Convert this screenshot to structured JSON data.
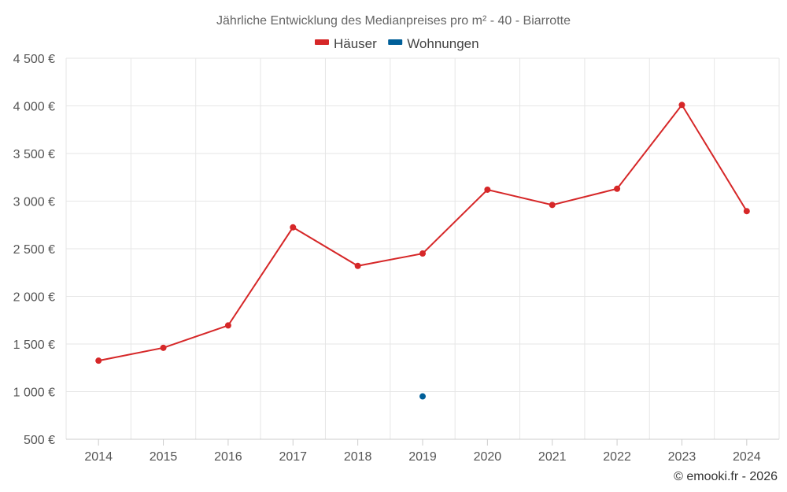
{
  "chart_data": {
    "type": "line",
    "title": "Jährliche Entwicklung des Medianpreises pro m² - 40 - Biarrotte",
    "categories": [
      "2014",
      "2015",
      "2016",
      "2017",
      "2018",
      "2019",
      "2020",
      "2021",
      "2022",
      "2023",
      "2024"
    ],
    "y_ticks": [
      500,
      1000,
      1500,
      2000,
      2500,
      3000,
      3500,
      4000,
      4500
    ],
    "y_tick_labels": [
      "500 €",
      "1 000 €",
      "1 500 €",
      "2 000 €",
      "2 500 €",
      "3 000 €",
      "3 500 €",
      "4 000 €",
      "4 500 €"
    ],
    "ylim": [
      500,
      4500
    ],
    "grid": true,
    "legend_position": "top-center",
    "series": [
      {
        "name": "Häuser",
        "color": "#d62728",
        "values": [
          1325,
          1460,
          1695,
          2725,
          2320,
          2450,
          3120,
          2960,
          3130,
          4010,
          2895
        ]
      },
      {
        "name": "Wohnungen",
        "color": "#005f99",
        "values": [
          null,
          null,
          null,
          null,
          null,
          950,
          null,
          null,
          null,
          null,
          null
        ]
      }
    ]
  },
  "credit": "© emooki.fr - 2026"
}
